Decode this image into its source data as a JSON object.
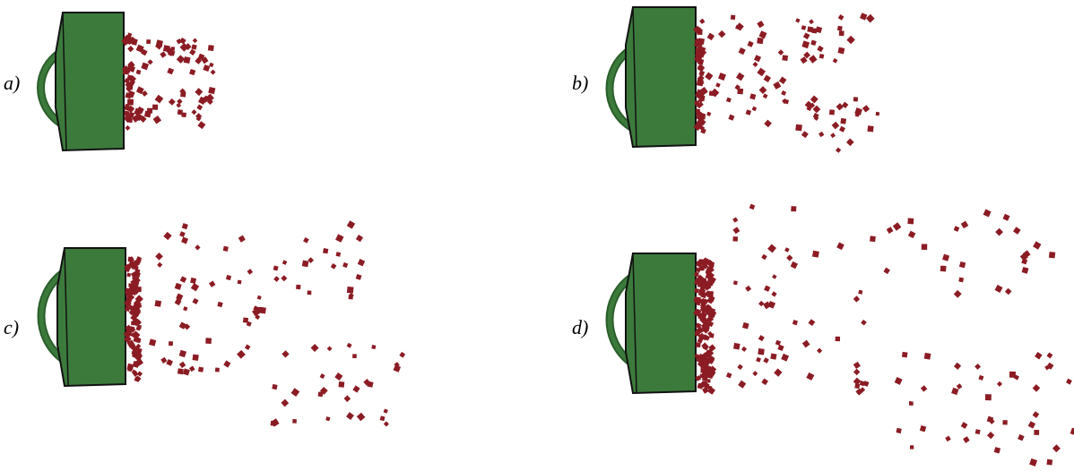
{
  "panels": [
    {
      "id": "a",
      "label": "a)",
      "particle_color": "#8b1c24",
      "body_color": "#3c7a3c"
    },
    {
      "id": "b",
      "label": "b)",
      "particle_color": "#8b1c24",
      "body_color": "#3c7a3c"
    },
    {
      "id": "c",
      "label": "c)",
      "particle_color": "#8b1c24",
      "body_color": "#3c7a3c"
    },
    {
      "id": "d",
      "label": "d)",
      "particle_color": "#8b1c24",
      "body_color": "#3c7a3c"
    }
  ]
}
